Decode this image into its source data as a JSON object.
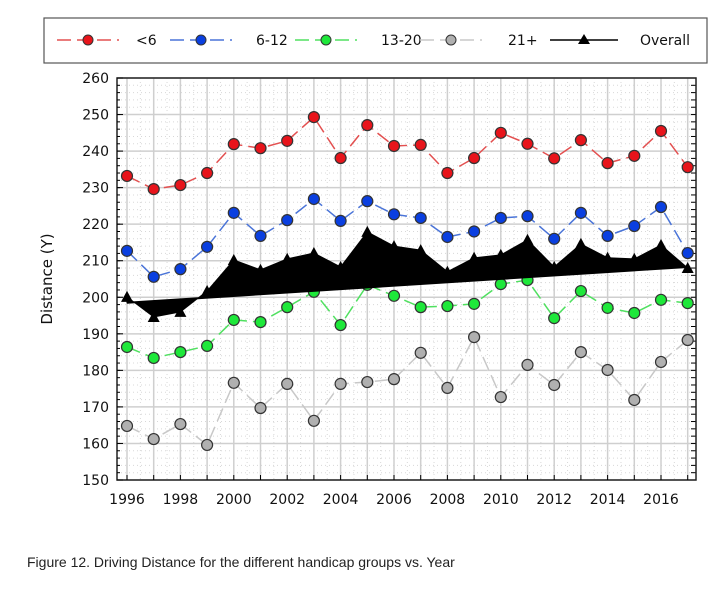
{
  "chart_data": {
    "type": "line",
    "title": "",
    "xlabel": "",
    "ylabel": "Distance (Y)",
    "xlim": [
      1996,
      2017
    ],
    "ylim": [
      150,
      260
    ],
    "yticks": [
      150,
      160,
      170,
      180,
      190,
      200,
      210,
      220,
      230,
      240,
      250,
      260
    ],
    "xticks": [
      1996,
      1998,
      2000,
      2002,
      2004,
      2006,
      2008,
      2010,
      2012,
      2014,
      2016
    ],
    "grid": true,
    "legend_position": "top",
    "x": [
      1996,
      1997,
      1998,
      1999,
      2000,
      2001,
      2002,
      2003,
      2004,
      2005,
      2006,
      2007,
      2008,
      2009,
      2010,
      2011,
      2012,
      2013,
      2014,
      2015,
      2016,
      2017
    ],
    "series": [
      {
        "name": "<6",
        "color": "#e8141b",
        "line": "#e35050",
        "values": [
          233.2,
          229.6,
          230.7,
          234,
          241.9,
          240.8,
          242.8,
          249.3,
          238.1,
          247.1,
          241.4,
          241.7,
          234,
          238.1,
          245,
          242,
          238,
          243,
          236.7,
          238.7,
          245.5,
          235.6
        ]
      },
      {
        "name": "6-12",
        "color": "#0a3fe0",
        "line": "#4a74d8",
        "values": [
          212.7,
          205.6,
          207.7,
          213.8,
          223.1,
          216.8,
          221.1,
          226.9,
          220.9,
          226.3,
          222.7,
          221.7,
          216.5,
          218,
          221.7,
          222.2,
          216,
          223.1,
          216.8,
          219.5,
          224.7,
          212.1
        ]
      },
      {
        "name": "13-20",
        "color": "#1ee83a",
        "line": "#50e060",
        "values": [
          186.4,
          183.4,
          185,
          186.7,
          193.8,
          193.2,
          197.3,
          201.5,
          192.4,
          203.4,
          200.4,
          197.3,
          197.6,
          198.2,
          203.6,
          204.7,
          194.3,
          201.7,
          197.1,
          195.7,
          199.3,
          198.4
        ]
      },
      {
        "name": "21+",
        "color": "#b0b0b0",
        "line": "#c8c8c8",
        "values": [
          164.8,
          161.2,
          165.3,
          159.6,
          176.6,
          169.7,
          176.3,
          166.2,
          176.3,
          176.8,
          177.6,
          184.8,
          175.2,
          189.1,
          172.7,
          181.5,
          176,
          185,
          180.1,
          171.9,
          182.3,
          188.3
        ]
      },
      {
        "name": "Overall",
        "color": "#000000",
        "line": "#000000",
        "values": [
          200.1,
          194.6,
          196,
          201.7,
          210.2,
          207.5,
          210.5,
          212.1,
          208.3,
          217.9,
          214,
          212.9,
          207,
          210.8,
          211.6,
          215.7,
          208.3,
          214.6,
          210.8,
          210.5,
          214.3,
          208
        ],
        "trend": [
          198.5,
          208.3
        ]
      }
    ]
  },
  "caption": "Figure 12. Driving Distance for the different handicap groups vs. Year"
}
